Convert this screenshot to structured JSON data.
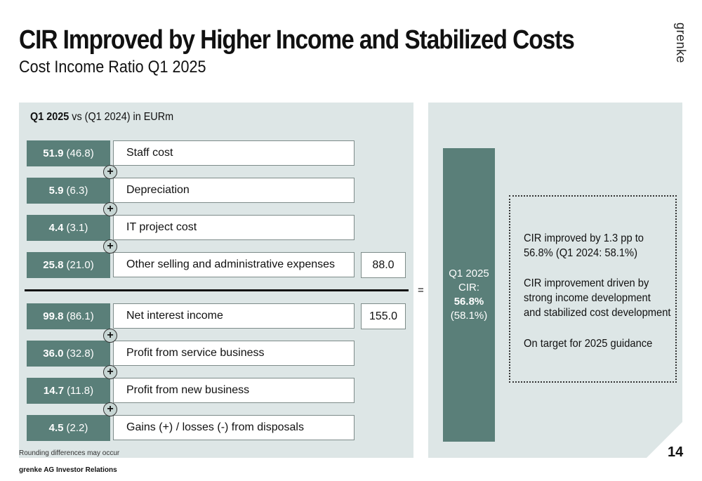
{
  "header": {
    "title": "CIR Improved by Higher Income and Stabilized Costs",
    "subtitle": "Cost Income Ratio Q1 2025",
    "logo": "grenke"
  },
  "panel": {
    "heading_bold": "Q1 2025",
    "heading_rest": "vs (Q1 2024) in EURm"
  },
  "costs": [
    {
      "value": "51.9",
      "prev": "(46.8)",
      "label": "Staff cost"
    },
    {
      "value": "5.9",
      "prev": "(6.3)",
      "label": "Depreciation"
    },
    {
      "value": "4.4",
      "prev": "(3.1)",
      "label": "IT project cost"
    },
    {
      "value": "25.8",
      "prev": "(21.0)",
      "label": "Other selling and administrative expenses"
    }
  ],
  "income": [
    {
      "value": "99.8",
      "prev": "(86.1)",
      "label": "Net interest income"
    },
    {
      "value": "36.0",
      "prev": "(32.8)",
      "label": "Profit from service business"
    },
    {
      "value": "14.7",
      "prev": "(11.8)",
      "label": "Profit from new business"
    },
    {
      "value": "4.5",
      "prev": "(2.2)",
      "label": "Gains (+) / losses (-) from disposals"
    }
  ],
  "plus_sign": "+",
  "totals": {
    "costs": "88.0",
    "income": "155.0"
  },
  "equals_sign": "=",
  "cir": {
    "line1": "Q1 2025",
    "line2": "CIR:",
    "value": "56.8%",
    "prev": "(58.1%)"
  },
  "commentary": {
    "p1_line1": "CIR improved by 1.3 pp to",
    "p1_line2": "56.8% (Q1 2024: 58.1%)",
    "p2_line1": "CIR improvement driven by",
    "p2_line2": "strong income development",
    "p2_line3": "and stabilized cost development",
    "p3_line1": "On target for 2025 guidance"
  },
  "footnote": "Rounding differences may occur",
  "footer": "grenke AG Investor Relations",
  "page_number": "14",
  "colors": {
    "accent": "#5a7f79",
    "panel": "#dde6e6"
  }
}
